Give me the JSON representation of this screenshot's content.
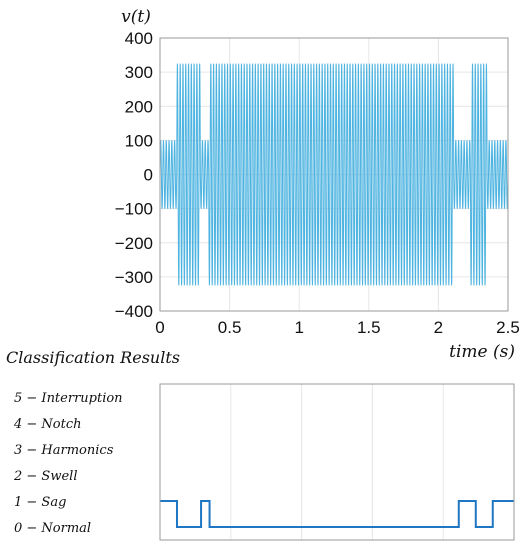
{
  "chart_data": [
    {
      "type": "line",
      "ylabel": "v(t)",
      "xlabel": "time (s)",
      "xlim": [
        0,
        2.5
      ],
      "ylim": [
        -400,
        400
      ],
      "x_ticks": [
        "0",
        "0.5",
        "1",
        "1.5",
        "2",
        "2.5"
      ],
      "y_ticks": [
        "400",
        "300",
        "200",
        "100",
        "0",
        "−100",
        "−200",
        "−300",
        "−400"
      ],
      "grid": true,
      "series": [
        {
          "color": "#4db3e0",
          "signal": "sinusoid",
          "frequency_hz": 50,
          "segments": [
            {
              "start": 0.0,
              "end": 0.12,
              "amplitude": 100
            },
            {
              "start": 0.12,
              "end": 0.29,
              "amplitude": 325
            },
            {
              "start": 0.29,
              "end": 0.35,
              "amplitude": 100
            },
            {
              "start": 0.35,
              "end": 2.11,
              "amplitude": 325
            },
            {
              "start": 2.11,
              "end": 2.23,
              "amplitude": 100
            },
            {
              "start": 2.23,
              "end": 2.35,
              "amplitude": 325
            },
            {
              "start": 2.35,
              "end": 2.5,
              "amplitude": 100
            }
          ]
        }
      ]
    },
    {
      "type": "line",
      "title": "Classification Results",
      "xlim": [
        0,
        2.5
      ],
      "ylim": [
        -0.5,
        5.5
      ],
      "classes": [
        "0 − Normal",
        "1 − Sag",
        "2 − Swell",
        "3 − Harmonics",
        "4 − Notch",
        "5 − Interruption"
      ],
      "grid": true,
      "series": [
        {
          "color": "#1f77c4",
          "step": true,
          "x": [
            0,
            0.12,
            0.12,
            0.29,
            0.29,
            0.35,
            0.35,
            2.11,
            2.11,
            2.23,
            2.23,
            2.35,
            2.35,
            2.5
          ],
          "y": [
            1,
            1,
            0,
            0,
            1,
            1,
            0,
            0,
            1,
            1,
            0,
            0,
            1,
            1
          ]
        }
      ]
    }
  ]
}
